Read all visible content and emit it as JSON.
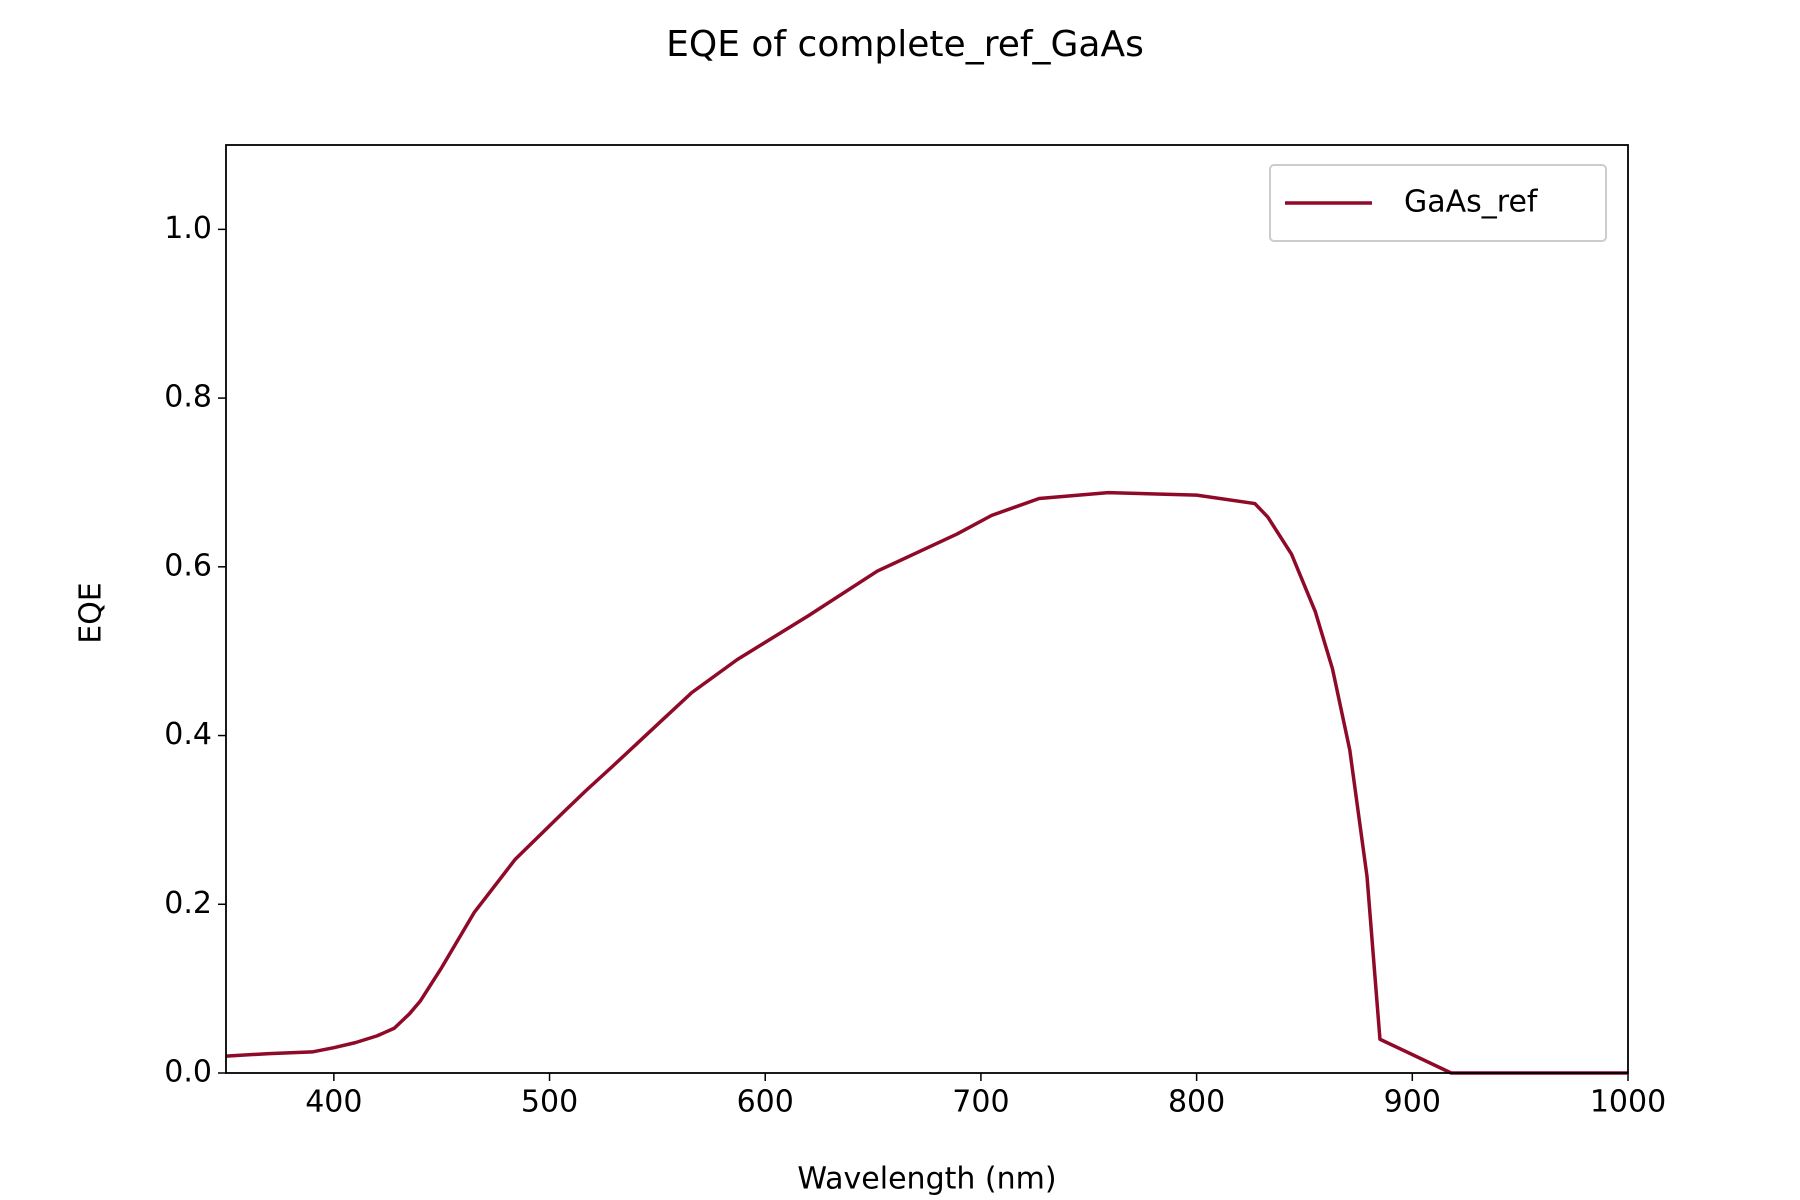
{
  "chart_data": {
    "type": "line",
    "title": "EQE of  complete_ref_GaAs",
    "x_label": "Wavelength (nm)",
    "y_label": "EQE",
    "x": [
      350,
      370,
      390,
      400,
      410,
      420,
      428,
      435,
      440,
      445,
      450,
      465,
      484,
      506,
      517,
      529,
      550,
      566,
      587,
      620,
      652,
      689,
      705,
      727,
      759,
      800,
      827,
      833,
      844,
      855,
      863,
      871,
      879,
      885,
      918,
      950,
      1000
    ],
    "series": [
      {
        "name": "GaAs_ref",
        "color": "#8f0a28",
        "values": [
          0.02,
          0.023,
          0.025,
          0.03,
          0.036,
          0.044,
          0.053,
          0.07,
          0.085,
          0.105,
          0.125,
          0.19,
          0.253,
          0.308,
          0.335,
          0.363,
          0.413,
          0.451,
          0.49,
          0.542,
          0.595,
          0.639,
          0.661,
          0.681,
          0.688,
          0.685,
          0.675,
          0.659,
          0.615,
          0.547,
          0.479,
          0.383,
          0.233,
          0.04,
          0.0,
          0.0,
          0.0
        ]
      }
    ],
    "xlim": [
      350,
      1000
    ],
    "xticks": [
      400,
      500,
      600,
      700,
      800,
      900,
      1000
    ],
    "ylim": [
      0,
      1.1
    ],
    "yticks": [
      {
        "value": 0,
        "label": "0.0"
      },
      0.2,
      0.4,
      0.6,
      0.8,
      {
        "value": 1,
        "label": "1.0"
      }
    ],
    "legend": "upper right"
  }
}
